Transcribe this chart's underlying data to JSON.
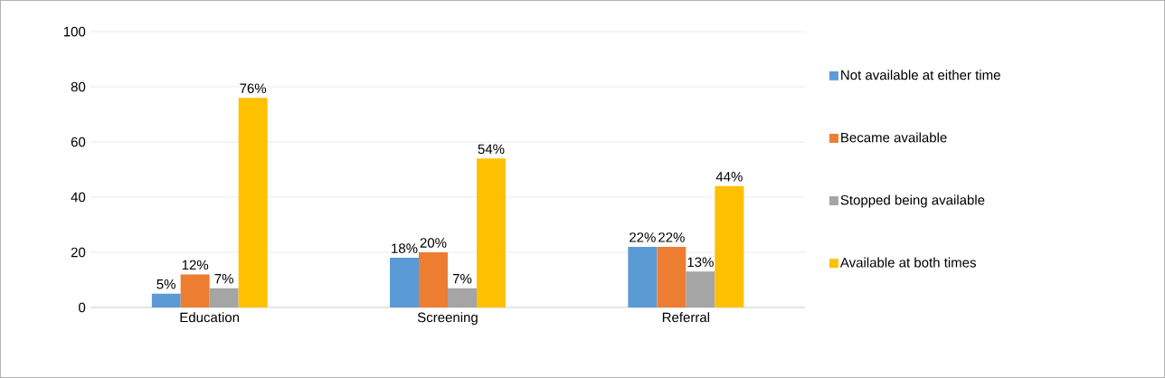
{
  "chart_data": {
    "type": "bar",
    "categories": [
      "Education",
      "Screening",
      "Referral"
    ],
    "series": [
      {
        "name": "Not available at either time",
        "color": "#5b9bd5",
        "values": [
          5,
          18,
          22
        ],
        "value_labels": [
          "5%",
          "18%",
          "22%"
        ]
      },
      {
        "name": "Became available",
        "color": "#ed7d31",
        "values": [
          12,
          20,
          22
        ],
        "value_labels": [
          "12%",
          "20%",
          "22%"
        ]
      },
      {
        "name": "Stopped being available",
        "color": "#a5a5a5",
        "values": [
          7,
          7,
          13
        ],
        "value_labels": [
          "7%",
          "7%",
          "13%"
        ]
      },
      {
        "name": "Available at both times",
        "color": "#ffc000",
        "values": [
          76,
          54,
          44
        ],
        "value_labels": [
          "76%",
          "54%",
          "44%"
        ]
      }
    ],
    "ylim": [
      0,
      100
    ],
    "yticks": [
      0,
      20,
      40,
      60,
      80,
      100
    ],
    "grid": "y",
    "legend": "right"
  }
}
